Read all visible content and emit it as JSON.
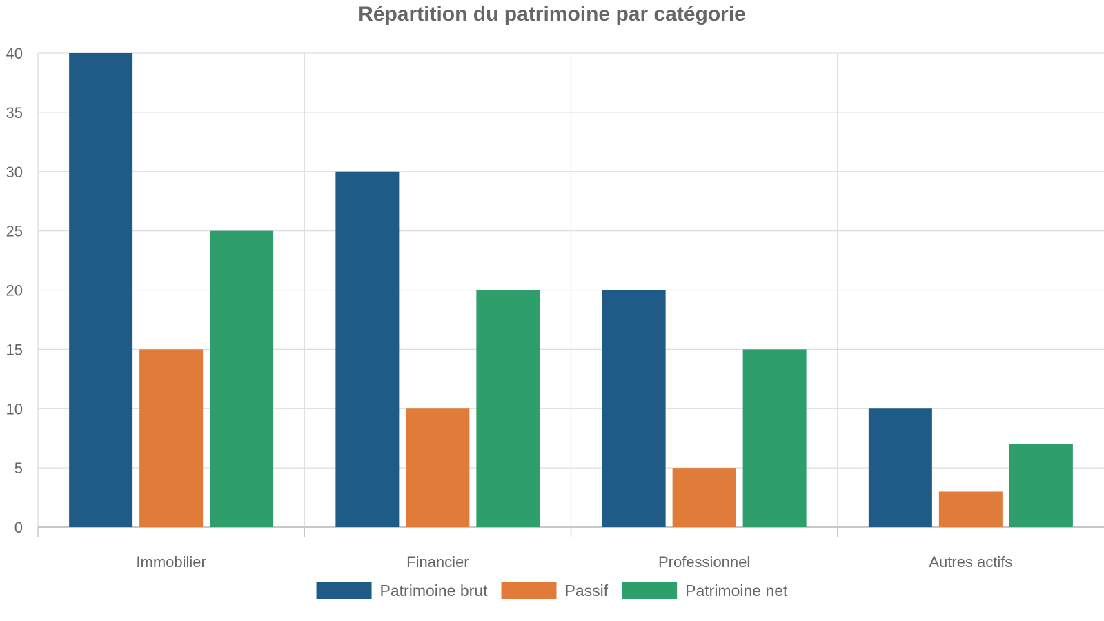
{
  "chart_data": {
    "type": "bar",
    "title": "Répartition du patrimoine par catégorie",
    "xlabel": "",
    "ylabel": "",
    "categories": [
      "Immobilier",
      "Financier",
      "Professionnel",
      "Autres actifs"
    ],
    "ylim": [
      0,
      40
    ],
    "yticks": [
      0,
      5,
      10,
      15,
      20,
      25,
      30,
      35,
      40
    ],
    "grid": true,
    "legend_position": "bottom",
    "series": [
      {
        "name": "Patrimoine brut",
        "color": "#1f5b87",
        "values": [
          40,
          30,
          20,
          10
        ]
      },
      {
        "name": "Passif",
        "color": "#e07b3a",
        "values": [
          15,
          10,
          5,
          3
        ]
      },
      {
        "name": "Patrimoine net",
        "color": "#2e9f6c",
        "values": [
          25,
          20,
          15,
          7
        ]
      }
    ]
  }
}
